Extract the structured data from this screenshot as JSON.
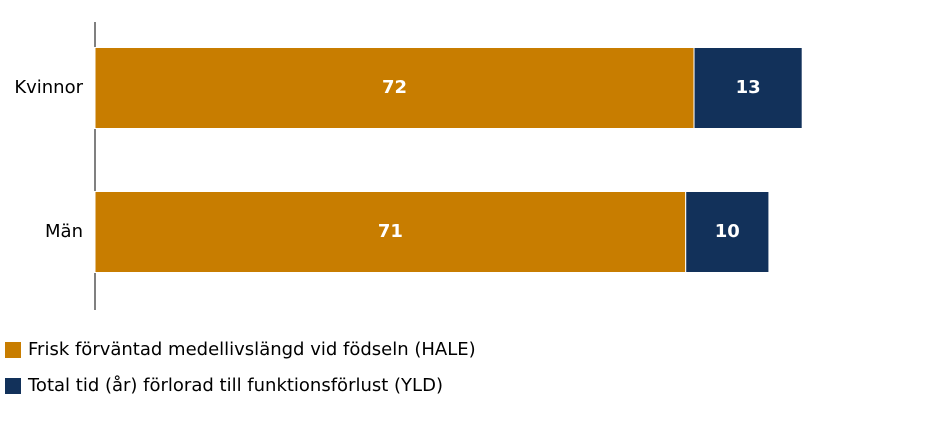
{
  "chart_data": {
    "type": "stacked-barh",
    "categories": [
      "Kvinnor",
      "Män"
    ],
    "series": [
      {
        "name": "Frisk förväntad medellivslängd vid födseln (HALE)",
        "color": "#c87d00",
        "values": [
          72,
          71
        ]
      },
      {
        "name": "Total tid (år) förlorad till funktionsförlust (YLD)",
        "color": "#12315a",
        "values": [
          13,
          10
        ]
      }
    ],
    "xlim": [
      0,
      100
    ],
    "legend": "bottom-left"
  }
}
